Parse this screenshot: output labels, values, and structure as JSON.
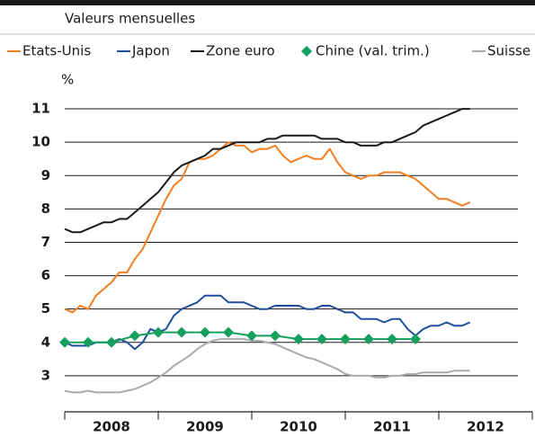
{
  "chart_data": {
    "type": "line",
    "subtitle": "Valeurs mensuelles",
    "y_label": "%",
    "categories": [
      null,
      null,
      null,
      null,
      null,
      "2008",
      null,
      null,
      null,
      null,
      null,
      null,
      null,
      null,
      null,
      null,
      null,
      "2009",
      null,
      null,
      null,
      null,
      null,
      null,
      null,
      null,
      null,
      null,
      null,
      "2010",
      null,
      null,
      null,
      null,
      null,
      null,
      null,
      null,
      null,
      null,
      null,
      "2011",
      null,
      null,
      null,
      null,
      null,
      null,
      null,
      null,
      null,
      null,
      null,
      "2012",
      null,
      null,
      null,
      null,
      null,
      null
    ],
    "ylim": [
      2,
      11.5
    ],
    "yticks": [
      3,
      4,
      5,
      6,
      7,
      8,
      9,
      10,
      11
    ],
    "grid": true,
    "series": [
      {
        "name": "Etats-Unis",
        "color": "#f07f21",
        "values": [
          5.0,
          4.9,
          5.1,
          5.0,
          5.4,
          5.6,
          5.8,
          6.1,
          6.1,
          6.5,
          6.8,
          7.3,
          7.8,
          8.3,
          8.7,
          8.9,
          9.4,
          9.5,
          9.5,
          9.6,
          9.8,
          10.0,
          9.9,
          9.9,
          9.7,
          9.8,
          9.8,
          9.9,
          9.6,
          9.4,
          9.5,
          9.6,
          9.5,
          9.5,
          9.8,
          9.4,
          9.1,
          9.0,
          8.9,
          9.0,
          9.0,
          9.1,
          9.1,
          9.1,
          9.0,
          8.9,
          8.7,
          8.5,
          8.3,
          8.3,
          8.2,
          8.1,
          8.2,
          null,
          null,
          null,
          null,
          null,
          null,
          null
        ]
      },
      {
        "name": "Japon",
        "color": "#1f4e9b",
        "values": [
          4.0,
          3.9,
          3.9,
          3.9,
          4.0,
          4.0,
          4.0,
          4.1,
          4.0,
          3.8,
          4.0,
          4.4,
          4.3,
          4.4,
          4.8,
          5.0,
          5.1,
          5.2,
          5.4,
          5.4,
          5.4,
          5.2,
          5.2,
          5.2,
          5.1,
          5.0,
          5.0,
          5.1,
          5.1,
          5.1,
          5.1,
          5.0,
          5.0,
          5.1,
          5.1,
          5.0,
          4.9,
          4.9,
          4.7,
          4.7,
          4.7,
          4.6,
          4.7,
          4.7,
          4.4,
          4.2,
          4.4,
          4.5,
          4.5,
          4.6,
          4.5,
          4.5,
          4.6,
          null,
          null,
          null,
          null,
          null,
          null,
          null
        ]
      },
      {
        "name": "Zone euro",
        "color": "#1a1a1a",
        "values": [
          7.4,
          7.3,
          7.3,
          7.4,
          7.5,
          7.6,
          7.6,
          7.7,
          7.7,
          7.9,
          8.1,
          8.3,
          8.5,
          8.8,
          9.1,
          9.3,
          9.4,
          9.5,
          9.6,
          9.8,
          9.8,
          9.9,
          10.0,
          10.0,
          10.0,
          10.0,
          10.1,
          10.1,
          10.2,
          10.2,
          10.2,
          10.2,
          10.2,
          10.1,
          10.1,
          10.1,
          10.0,
          10.0,
          9.9,
          9.9,
          9.9,
          10.0,
          10.0,
          10.1,
          10.2,
          10.3,
          10.5,
          10.6,
          10.7,
          10.8,
          10.9,
          11.0,
          11.0,
          null,
          null,
          null,
          null,
          null,
          null,
          null
        ]
      },
      {
        "name": "Chine (val. trim.)",
        "color": "#17a05d",
        "marker": "diamond",
        "values": [
          4.0,
          null,
          null,
          4.0,
          null,
          null,
          4.0,
          null,
          null,
          4.2,
          null,
          null,
          4.3,
          null,
          null,
          4.3,
          null,
          null,
          4.3,
          null,
          null,
          4.3,
          null,
          null,
          4.2,
          null,
          null,
          4.2,
          null,
          null,
          4.1,
          null,
          null,
          4.1,
          null,
          null,
          4.1,
          null,
          null,
          4.1,
          null,
          null,
          4.1,
          null,
          null,
          4.1,
          null,
          null,
          null,
          null,
          null,
          null,
          null,
          null,
          null,
          null,
          null,
          null,
          null,
          null
        ]
      },
      {
        "name": "Suisse",
        "color": "#a8aab0",
        "values": [
          2.55,
          2.5,
          2.5,
          2.55,
          2.5,
          2.5,
          2.5,
          2.5,
          2.55,
          2.6,
          2.7,
          2.8,
          2.95,
          3.1,
          3.3,
          3.45,
          3.6,
          3.8,
          3.95,
          4.05,
          4.1,
          4.1,
          4.1,
          4.1,
          4.05,
          4.05,
          4.0,
          3.95,
          3.85,
          3.75,
          3.65,
          3.55,
          3.5,
          3.4,
          3.3,
          3.2,
          3.05,
          3.0,
          3.0,
          3.0,
          2.95,
          2.95,
          3.0,
          3.0,
          3.05,
          3.05,
          3.1,
          3.1,
          3.1,
          3.1,
          3.15,
          3.15,
          3.15,
          null,
          null,
          null,
          null,
          null,
          null,
          null
        ]
      }
    ]
  }
}
